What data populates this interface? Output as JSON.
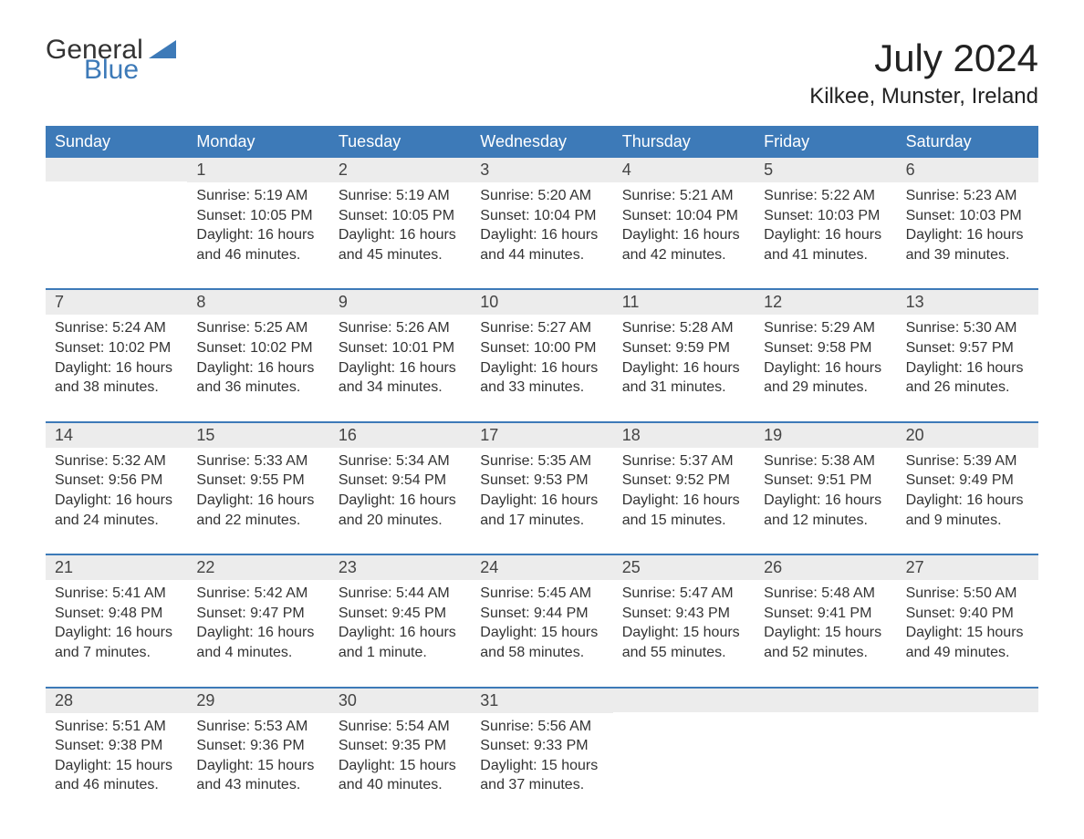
{
  "logo": {
    "word1": "General",
    "word2": "Blue",
    "icon_name": "flag-icon"
  },
  "colors": {
    "header_bg": "#3d7ab8",
    "header_text": "#ffffff",
    "daynum_bg": "#ececec",
    "rule": "#3d7ab8",
    "body_text": "#333333",
    "title_text": "#222222",
    "logo_accent": "#3d7ab8",
    "page_bg": "#ffffff"
  },
  "typography": {
    "month_title_fontsize": 42,
    "location_fontsize": 24,
    "weekday_fontsize": 18,
    "daynum_fontsize": 18,
    "body_fontsize": 16
  },
  "title": "July 2024",
  "location": "Kilkee, Munster, Ireland",
  "weekdays": [
    "Sunday",
    "Monday",
    "Tuesday",
    "Wednesday",
    "Thursday",
    "Friday",
    "Saturday"
  ],
  "weeks": [
    [
      null,
      {
        "n": "1",
        "sunrise": "Sunrise: 5:19 AM",
        "sunset": "Sunset: 10:05 PM",
        "day1": "Daylight: 16 hours",
        "day2": "and 46 minutes."
      },
      {
        "n": "2",
        "sunrise": "Sunrise: 5:19 AM",
        "sunset": "Sunset: 10:05 PM",
        "day1": "Daylight: 16 hours",
        "day2": "and 45 minutes."
      },
      {
        "n": "3",
        "sunrise": "Sunrise: 5:20 AM",
        "sunset": "Sunset: 10:04 PM",
        "day1": "Daylight: 16 hours",
        "day2": "and 44 minutes."
      },
      {
        "n": "4",
        "sunrise": "Sunrise: 5:21 AM",
        "sunset": "Sunset: 10:04 PM",
        "day1": "Daylight: 16 hours",
        "day2": "and 42 minutes."
      },
      {
        "n": "5",
        "sunrise": "Sunrise: 5:22 AM",
        "sunset": "Sunset: 10:03 PM",
        "day1": "Daylight: 16 hours",
        "day2": "and 41 minutes."
      },
      {
        "n": "6",
        "sunrise": "Sunrise: 5:23 AM",
        "sunset": "Sunset: 10:03 PM",
        "day1": "Daylight: 16 hours",
        "day2": "and 39 minutes."
      }
    ],
    [
      {
        "n": "7",
        "sunrise": "Sunrise: 5:24 AM",
        "sunset": "Sunset: 10:02 PM",
        "day1": "Daylight: 16 hours",
        "day2": "and 38 minutes."
      },
      {
        "n": "8",
        "sunrise": "Sunrise: 5:25 AM",
        "sunset": "Sunset: 10:02 PM",
        "day1": "Daylight: 16 hours",
        "day2": "and 36 minutes."
      },
      {
        "n": "9",
        "sunrise": "Sunrise: 5:26 AM",
        "sunset": "Sunset: 10:01 PM",
        "day1": "Daylight: 16 hours",
        "day2": "and 34 minutes."
      },
      {
        "n": "10",
        "sunrise": "Sunrise: 5:27 AM",
        "sunset": "Sunset: 10:00 PM",
        "day1": "Daylight: 16 hours",
        "day2": "and 33 minutes."
      },
      {
        "n": "11",
        "sunrise": "Sunrise: 5:28 AM",
        "sunset": "Sunset: 9:59 PM",
        "day1": "Daylight: 16 hours",
        "day2": "and 31 minutes."
      },
      {
        "n": "12",
        "sunrise": "Sunrise: 5:29 AM",
        "sunset": "Sunset: 9:58 PM",
        "day1": "Daylight: 16 hours",
        "day2": "and 29 minutes."
      },
      {
        "n": "13",
        "sunrise": "Sunrise: 5:30 AM",
        "sunset": "Sunset: 9:57 PM",
        "day1": "Daylight: 16 hours",
        "day2": "and 26 minutes."
      }
    ],
    [
      {
        "n": "14",
        "sunrise": "Sunrise: 5:32 AM",
        "sunset": "Sunset: 9:56 PM",
        "day1": "Daylight: 16 hours",
        "day2": "and 24 minutes."
      },
      {
        "n": "15",
        "sunrise": "Sunrise: 5:33 AM",
        "sunset": "Sunset: 9:55 PM",
        "day1": "Daylight: 16 hours",
        "day2": "and 22 minutes."
      },
      {
        "n": "16",
        "sunrise": "Sunrise: 5:34 AM",
        "sunset": "Sunset: 9:54 PM",
        "day1": "Daylight: 16 hours",
        "day2": "and 20 minutes."
      },
      {
        "n": "17",
        "sunrise": "Sunrise: 5:35 AM",
        "sunset": "Sunset: 9:53 PM",
        "day1": "Daylight: 16 hours",
        "day2": "and 17 minutes."
      },
      {
        "n": "18",
        "sunrise": "Sunrise: 5:37 AM",
        "sunset": "Sunset: 9:52 PM",
        "day1": "Daylight: 16 hours",
        "day2": "and 15 minutes."
      },
      {
        "n": "19",
        "sunrise": "Sunrise: 5:38 AM",
        "sunset": "Sunset: 9:51 PM",
        "day1": "Daylight: 16 hours",
        "day2": "and 12 minutes."
      },
      {
        "n": "20",
        "sunrise": "Sunrise: 5:39 AM",
        "sunset": "Sunset: 9:49 PM",
        "day1": "Daylight: 16 hours",
        "day2": "and 9 minutes."
      }
    ],
    [
      {
        "n": "21",
        "sunrise": "Sunrise: 5:41 AM",
        "sunset": "Sunset: 9:48 PM",
        "day1": "Daylight: 16 hours",
        "day2": "and 7 minutes."
      },
      {
        "n": "22",
        "sunrise": "Sunrise: 5:42 AM",
        "sunset": "Sunset: 9:47 PM",
        "day1": "Daylight: 16 hours",
        "day2": "and 4 minutes."
      },
      {
        "n": "23",
        "sunrise": "Sunrise: 5:44 AM",
        "sunset": "Sunset: 9:45 PM",
        "day1": "Daylight: 16 hours",
        "day2": "and 1 minute."
      },
      {
        "n": "24",
        "sunrise": "Sunrise: 5:45 AM",
        "sunset": "Sunset: 9:44 PM",
        "day1": "Daylight: 15 hours",
        "day2": "and 58 minutes."
      },
      {
        "n": "25",
        "sunrise": "Sunrise: 5:47 AM",
        "sunset": "Sunset: 9:43 PM",
        "day1": "Daylight: 15 hours",
        "day2": "and 55 minutes."
      },
      {
        "n": "26",
        "sunrise": "Sunrise: 5:48 AM",
        "sunset": "Sunset: 9:41 PM",
        "day1": "Daylight: 15 hours",
        "day2": "and 52 minutes."
      },
      {
        "n": "27",
        "sunrise": "Sunrise: 5:50 AM",
        "sunset": "Sunset: 9:40 PM",
        "day1": "Daylight: 15 hours",
        "day2": "and 49 minutes."
      }
    ],
    [
      {
        "n": "28",
        "sunrise": "Sunrise: 5:51 AM",
        "sunset": "Sunset: 9:38 PM",
        "day1": "Daylight: 15 hours",
        "day2": "and 46 minutes."
      },
      {
        "n": "29",
        "sunrise": "Sunrise: 5:53 AM",
        "sunset": "Sunset: 9:36 PM",
        "day1": "Daylight: 15 hours",
        "day2": "and 43 minutes."
      },
      {
        "n": "30",
        "sunrise": "Sunrise: 5:54 AM",
        "sunset": "Sunset: 9:35 PM",
        "day1": "Daylight: 15 hours",
        "day2": "and 40 minutes."
      },
      {
        "n": "31",
        "sunrise": "Sunrise: 5:56 AM",
        "sunset": "Sunset: 9:33 PM",
        "day1": "Daylight: 15 hours",
        "day2": "and 37 minutes."
      },
      null,
      null,
      null
    ]
  ]
}
